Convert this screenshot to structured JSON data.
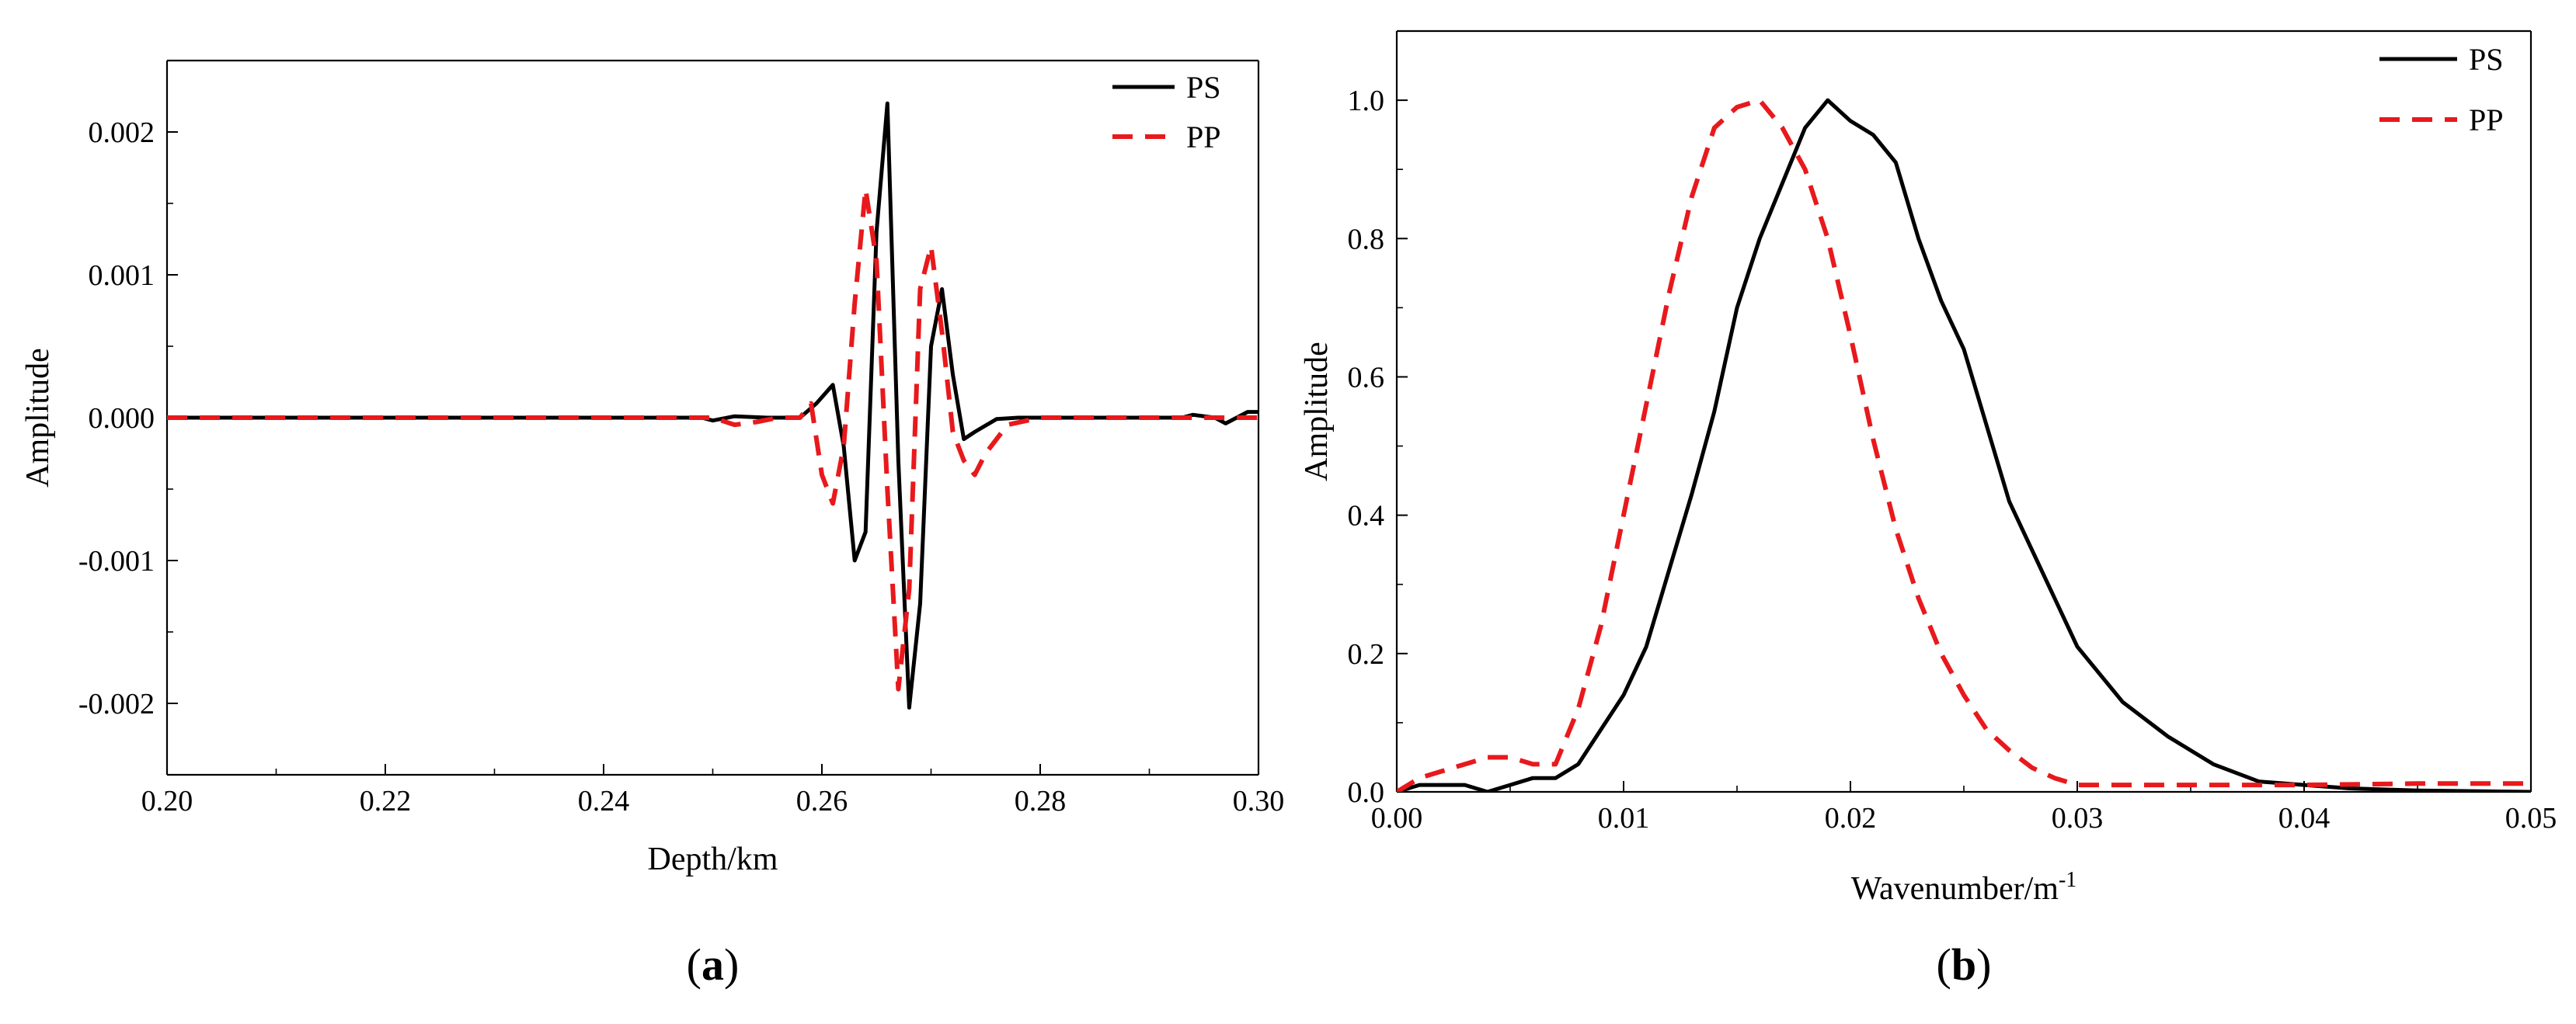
{
  "chart_data": [
    {
      "panel": "a",
      "type": "line",
      "panel_label": {
        "open": "(",
        "letter": "a",
        "close": ")"
      },
      "xlabel": "Depth/km",
      "ylabel": "Amplitude",
      "xlim": [
        0.2,
        0.3
      ],
      "ylim": [
        -0.0025,
        0.0025
      ],
      "x_ticks": [
        {
          "value": 0.2,
          "label": "0.20"
        },
        {
          "value": 0.22,
          "label": "0.22"
        },
        {
          "value": 0.24,
          "label": "0.24"
        },
        {
          "value": 0.26,
          "label": "0.26"
        },
        {
          "value": 0.28,
          "label": "0.28"
        },
        {
          "value": 0.3,
          "label": "0.30"
        }
      ],
      "y_ticks": [
        {
          "value": 0.002,
          "label": "0.002"
        },
        {
          "value": 0.001,
          "label": "0.001"
        },
        {
          "value": 0.0,
          "label": "0.000"
        },
        {
          "value": -0.001,
          "label": "-0.001"
        },
        {
          "value": -0.002,
          "label": "-0.002"
        }
      ],
      "legend_position": "top-right",
      "series": [
        {
          "name": "PS",
          "color": "#000000",
          "dash": "solid",
          "x": [
            0.2,
            0.249,
            0.25,
            0.252,
            0.255,
            0.258,
            0.2595,
            0.261,
            0.262,
            0.263,
            0.264,
            0.265,
            0.266,
            0.267,
            0.268,
            0.269,
            0.27,
            0.271,
            0.272,
            0.273,
            0.274,
            0.276,
            0.278,
            0.28,
            0.285,
            0.29,
            0.293,
            0.294,
            0.296,
            0.297,
            0.298,
            0.299,
            0.3
          ],
          "values": [
            0.0,
            0.0,
            -2e-05,
            1e-05,
            0.0,
            0.0,
            0.0001,
            0.00023,
            -0.0002,
            -0.001,
            -0.0008,
            0.0013,
            0.0022,
            -0.0003,
            -0.00203,
            -0.0013,
            0.0005,
            0.0009,
            0.0003,
            -0.00015,
            -0.0001,
            -1e-05,
            0.0,
            0.0,
            0.0,
            0.0,
            0.0,
            2e-05,
            0.0,
            -4e-05,
            0.0,
            4e-05,
            4e-05
          ]
        },
        {
          "name": "PP",
          "color": "#e8191c",
          "dash": "dashed",
          "x": [
            0.2,
            0.25,
            0.252,
            0.254,
            0.256,
            0.258,
            0.259,
            0.26,
            0.261,
            0.262,
            0.263,
            0.264,
            0.265,
            0.266,
            0.267,
            0.268,
            0.269,
            0.27,
            0.271,
            0.272,
            0.273,
            0.274,
            0.275,
            0.277,
            0.28,
            0.29,
            0.3
          ],
          "values": [
            0.0,
            0.0,
            -5e-05,
            -3e-05,
            0.0,
            0.0,
            0.0001,
            -0.0004,
            -0.0006,
            -0.0002,
            0.0008,
            0.0016,
            0.0011,
            -0.0005,
            -0.0019,
            -0.0012,
            0.0009,
            0.0012,
            0.0006,
            -0.0001,
            -0.0003,
            -0.0004,
            -0.00025,
            -5e-05,
            0.0,
            0.0,
            0.0
          ]
        }
      ]
    },
    {
      "panel": "b",
      "type": "line",
      "panel_label": {
        "open": "(",
        "letter": "b",
        "close": ")"
      },
      "xlabel_base": "Wavenumber/m",
      "xlabel_sup": "-1",
      "ylabel": "Amplitude",
      "xlim": [
        0.0,
        0.05
      ],
      "ylim": [
        0.0,
        1.1
      ],
      "x_ticks": [
        {
          "value": 0.0,
          "label": "0.00"
        },
        {
          "value": 0.01,
          "label": "0.01"
        },
        {
          "value": 0.02,
          "label": "0.02"
        },
        {
          "value": 0.03,
          "label": "0.03"
        },
        {
          "value": 0.04,
          "label": "0.04"
        },
        {
          "value": 0.05,
          "label": "0.05"
        }
      ],
      "y_ticks": [
        {
          "value": 0.0,
          "label": "0.0"
        },
        {
          "value": 0.2,
          "label": "0.2"
        },
        {
          "value": 0.4,
          "label": "0.4"
        },
        {
          "value": 0.6,
          "label": "0.6"
        },
        {
          "value": 0.8,
          "label": "0.8"
        },
        {
          "value": 1.0,
          "label": "1.0"
        }
      ],
      "legend_position": "top-right",
      "series": [
        {
          "name": "PS",
          "color": "#000000",
          "dash": "solid",
          "x": [
            0.0,
            0.001,
            0.002,
            0.003,
            0.004,
            0.005,
            0.006,
            0.007,
            0.008,
            0.009,
            0.01,
            0.011,
            0.012,
            0.013,
            0.014,
            0.015,
            0.016,
            0.017,
            0.018,
            0.019,
            0.02,
            0.021,
            0.022,
            0.023,
            0.024,
            0.025,
            0.026,
            0.027,
            0.028,
            0.029,
            0.03,
            0.032,
            0.034,
            0.036,
            0.038,
            0.04,
            0.042,
            0.045,
            0.05
          ],
          "values": [
            0.0,
            0.01,
            0.01,
            0.01,
            0.0,
            0.01,
            0.02,
            0.02,
            0.04,
            0.09,
            0.14,
            0.21,
            0.32,
            0.43,
            0.55,
            0.7,
            0.8,
            0.88,
            0.96,
            1.0,
            0.97,
            0.95,
            0.91,
            0.8,
            0.71,
            0.64,
            0.53,
            0.42,
            0.35,
            0.28,
            0.21,
            0.13,
            0.08,
            0.04,
            0.015,
            0.01,
            0.005,
            0.002,
            0.0
          ]
        },
        {
          "name": "PP",
          "color": "#e8191c",
          "dash": "dashed",
          "x": [
            0.0,
            0.001,
            0.002,
            0.003,
            0.004,
            0.005,
            0.006,
            0.007,
            0.008,
            0.009,
            0.01,
            0.011,
            0.012,
            0.013,
            0.014,
            0.015,
            0.016,
            0.017,
            0.018,
            0.019,
            0.02,
            0.021,
            0.022,
            0.023,
            0.024,
            0.025,
            0.026,
            0.027,
            0.028,
            0.029,
            0.03,
            0.035,
            0.04,
            0.045,
            0.05
          ],
          "values": [
            0.0,
            0.02,
            0.03,
            0.04,
            0.05,
            0.05,
            0.04,
            0.04,
            0.12,
            0.24,
            0.4,
            0.56,
            0.72,
            0.86,
            0.96,
            0.99,
            1.0,
            0.96,
            0.9,
            0.8,
            0.66,
            0.51,
            0.38,
            0.28,
            0.2,
            0.14,
            0.09,
            0.06,
            0.035,
            0.02,
            0.01,
            0.01,
            0.01,
            0.012,
            0.012
          ]
        }
      ]
    }
  ]
}
